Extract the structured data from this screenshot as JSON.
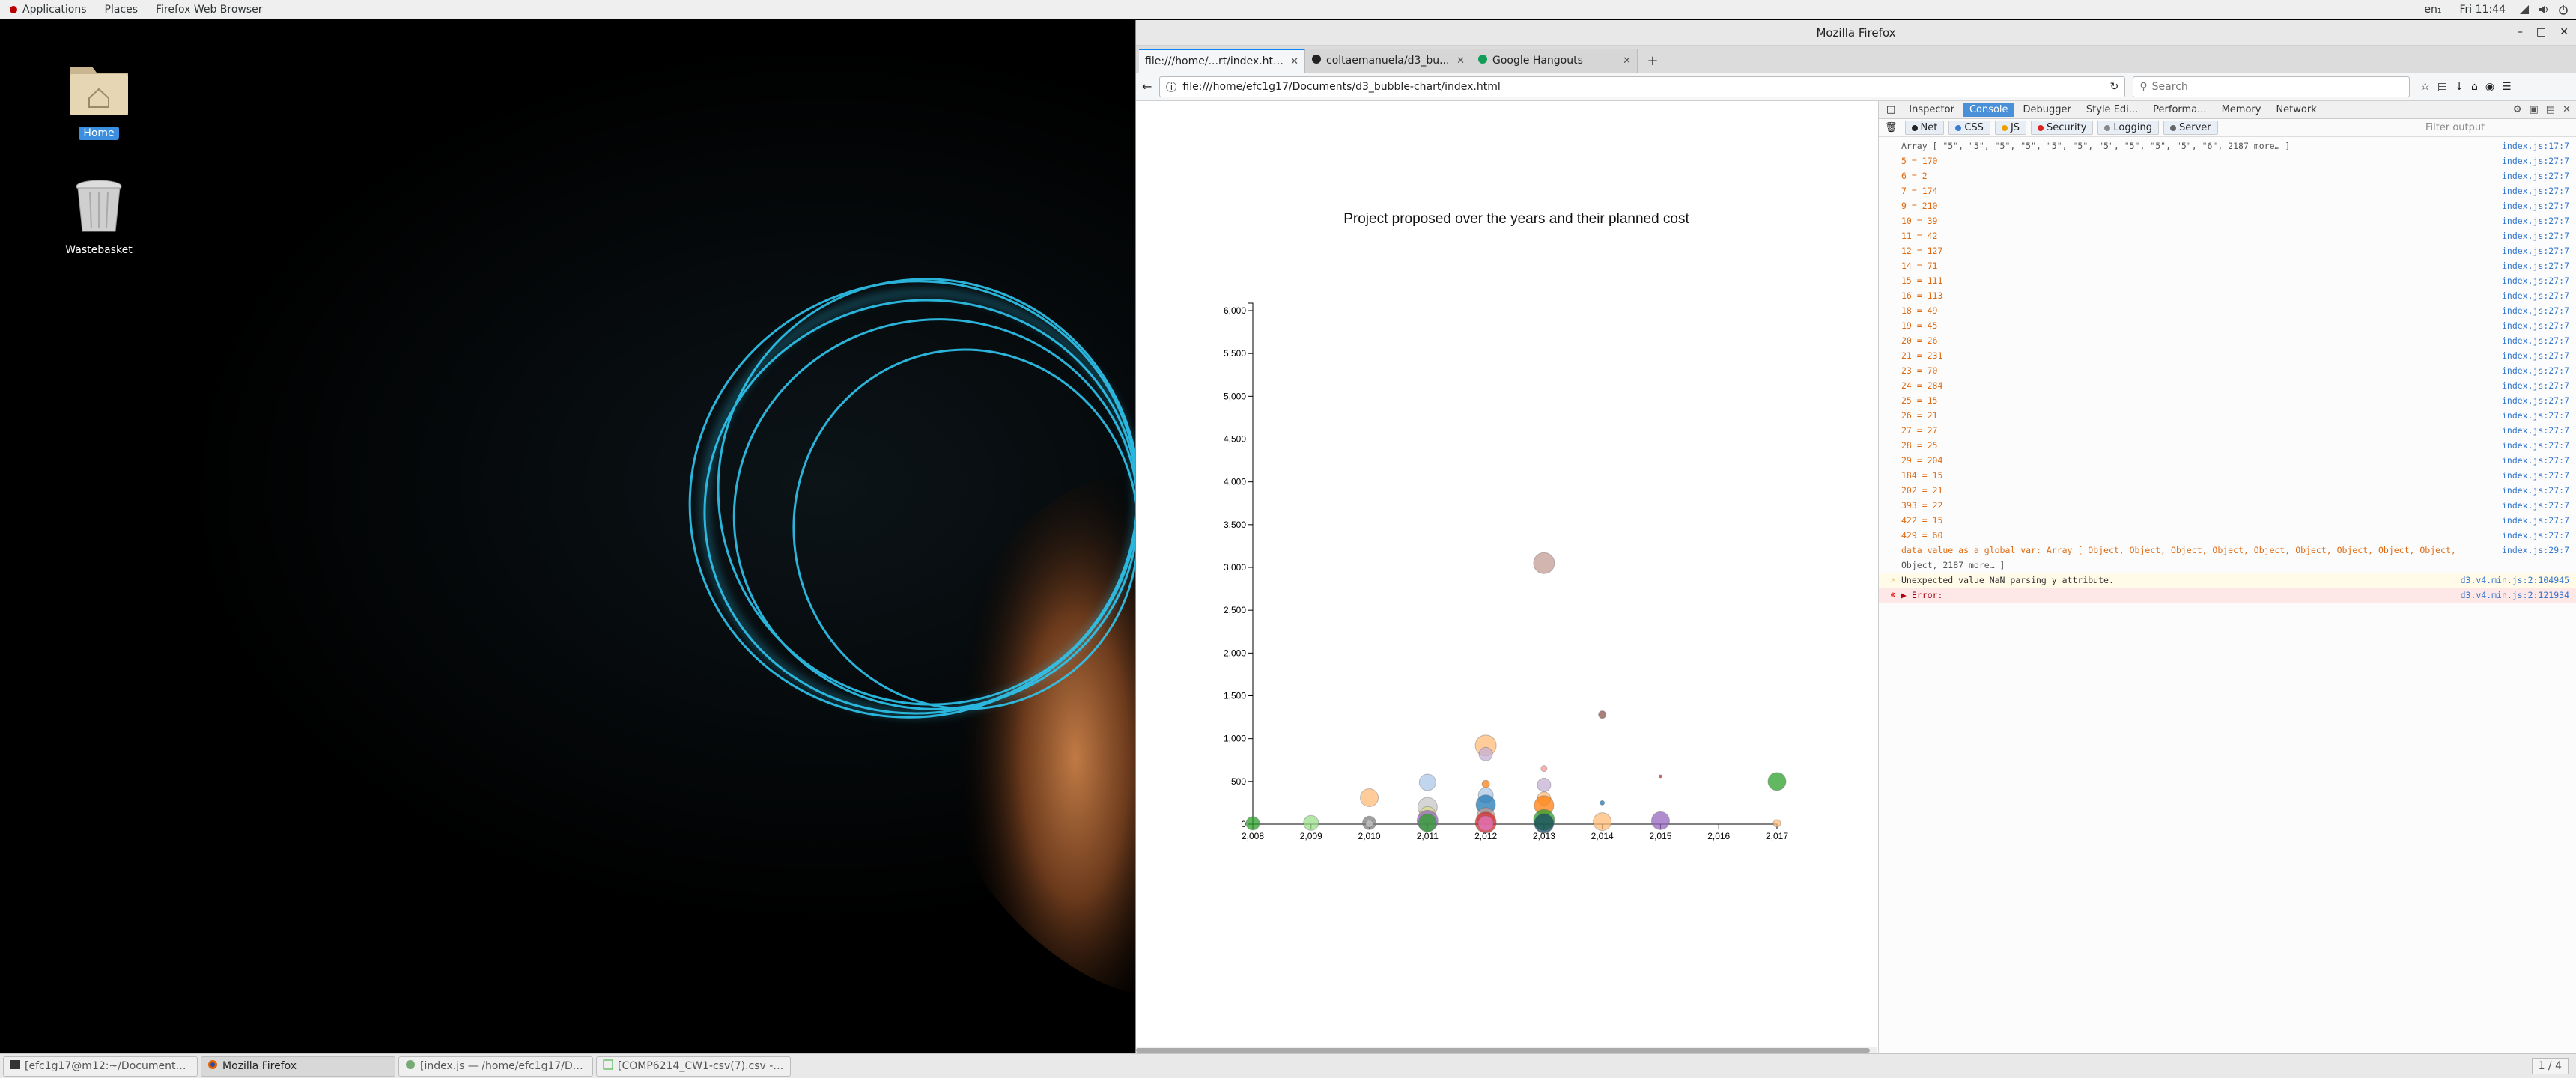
{
  "top_panel": {
    "applications": "Applications",
    "places": "Places",
    "app_menu": "Firefox Web Browser",
    "keyboard": "en₁",
    "clock": "Fri 11:44"
  },
  "desktop": {
    "icons": [
      {
        "label": "Home"
      },
      {
        "label": "Wastebasket"
      }
    ]
  },
  "firefox": {
    "window_title": "Mozilla Firefox",
    "tabs": [
      {
        "title": "file:///home/...rt/index.html"
      },
      {
        "title": "coltaemanuela/d3_bu..."
      },
      {
        "title": "Google Hangouts"
      }
    ],
    "url": "file:///home/efc1g17/Documents/d3_bubble-chart/index.html",
    "search_placeholder": "Search"
  },
  "chart_data": {
    "type": "scatter",
    "title": "Project proposed over the years and their planned cost",
    "xlabel": "",
    "ylabel": "",
    "x_ticks": [
      "2,008",
      "2,009",
      "2,010",
      "2,011",
      "2,012",
      "2,013",
      "2,014",
      "2,015",
      "2,016",
      "2,017"
    ],
    "y_ticks": [
      "0",
      "500",
      "1,000",
      "1,500",
      "2,000",
      "2,500",
      "3,000",
      "3,500",
      "4,000",
      "4,500",
      "5,000",
      "5,500",
      "6,000"
    ],
    "xlim": [
      2008,
      2017
    ],
    "ylim": [
      0,
      6000
    ],
    "points": [
      {
        "x": 2008,
        "y": 10,
        "r": 9,
        "color": "#2ca02c"
      },
      {
        "x": 2009,
        "y": 15,
        "r": 10,
        "color": "#98df8a"
      },
      {
        "x": 2010,
        "y": 310,
        "r": 12,
        "color": "#ffbb78"
      },
      {
        "x": 2010,
        "y": 15,
        "r": 9,
        "color": "#7f7f7f"
      },
      {
        "x": 2010,
        "y": 5,
        "r": 5,
        "color": "#c7c7c7"
      },
      {
        "x": 2011,
        "y": 490,
        "r": 11,
        "color": "#aec7e8"
      },
      {
        "x": 2011,
        "y": 200,
        "r": 13,
        "color": "#c7c7c7"
      },
      {
        "x": 2011,
        "y": 110,
        "r": 11,
        "color": "#dbdb8d"
      },
      {
        "x": 2011,
        "y": 40,
        "r": 14,
        "color": "#9467bd"
      },
      {
        "x": 2011,
        "y": 15,
        "r": 12,
        "color": "#2ca02c"
      },
      {
        "x": 2012,
        "y": 920,
        "r": 14,
        "color": "#ffbb78"
      },
      {
        "x": 2012,
        "y": 820,
        "r": 9,
        "color": "#c5b0d5"
      },
      {
        "x": 2012,
        "y": 470,
        "r": 5,
        "color": "#ff7f0e"
      },
      {
        "x": 2012,
        "y": 340,
        "r": 10,
        "color": "#aec7e8"
      },
      {
        "x": 2012,
        "y": 230,
        "r": 13,
        "color": "#1f77b4"
      },
      {
        "x": 2012,
        "y": 90,
        "r": 12,
        "color": "#c49c94"
      },
      {
        "x": 2012,
        "y": 20,
        "r": 14,
        "color": "#d62728"
      },
      {
        "x": 2012,
        "y": 10,
        "r": 10,
        "color": "#e377c2"
      },
      {
        "x": 2013,
        "y": 650,
        "r": 4,
        "color": "#ff9896"
      },
      {
        "x": 2013,
        "y": 460,
        "r": 9,
        "color": "#c5b0d5"
      },
      {
        "x": 2013,
        "y": 300,
        "r": 9,
        "color": "#ffbb78"
      },
      {
        "x": 2013,
        "y": 220,
        "r": 13,
        "color": "#ff7f0e"
      },
      {
        "x": 2013,
        "y": 50,
        "r": 14,
        "color": "#2ca02c"
      },
      {
        "x": 2013,
        "y": 10,
        "r": 13,
        "color": "#17485f"
      },
      {
        "x": 2013,
        "y": 3050,
        "r": 14,
        "color": "#c49c94"
      },
      {
        "x": 2014,
        "y": 1280,
        "r": 5,
        "color": "#8c564b"
      },
      {
        "x": 2014,
        "y": 250,
        "r": 3,
        "color": "#1f77b4"
      },
      {
        "x": 2014,
        "y": 30,
        "r": 12,
        "color": "#ffbb78"
      },
      {
        "x": 2015,
        "y": 560,
        "r": 2,
        "color": "#d62728"
      },
      {
        "x": 2015,
        "y": 40,
        "r": 12,
        "color": "#9467bd"
      },
      {
        "x": 2017,
        "y": 500,
        "r": 12,
        "color": "#2ca02c"
      },
      {
        "x": 2017,
        "y": 10,
        "r": 5,
        "color": "#ffbb78"
      }
    ]
  },
  "devtools": {
    "tabs": [
      "Inspector",
      "Console",
      "Debugger",
      "Style Edi...",
      "Performa...",
      "Memory",
      "Network"
    ],
    "filters": [
      "Net",
      "CSS",
      "JS",
      "Security",
      "Logging",
      "Server"
    ],
    "filter_placeholder": "Filter output",
    "console": [
      {
        "kind": "arr",
        "msg": "Array [ \"5\", \"5\", \"5\", \"5\", \"5\", \"5\", \"5\", \"5\", \"5\", \"5\", \"6\", 2187 more… ]",
        "src": "index.js:17:7"
      },
      {
        "kind": "log",
        "msg": "5 = 170",
        "src": "index.js:27:7"
      },
      {
        "kind": "log",
        "msg": "6 = 2",
        "src": "index.js:27:7"
      },
      {
        "kind": "log",
        "msg": "7 = 174",
        "src": "index.js:27:7"
      },
      {
        "kind": "log",
        "msg": "9 = 210",
        "src": "index.js:27:7"
      },
      {
        "kind": "log",
        "msg": "10 = 39",
        "src": "index.js:27:7"
      },
      {
        "kind": "log",
        "msg": "11 = 42",
        "src": "index.js:27:7"
      },
      {
        "kind": "log",
        "msg": "12 = 127",
        "src": "index.js:27:7"
      },
      {
        "kind": "log",
        "msg": "14 = 71",
        "src": "index.js:27:7"
      },
      {
        "kind": "log",
        "msg": "15 = 111",
        "src": "index.js:27:7"
      },
      {
        "kind": "log",
        "msg": "16 = 113",
        "src": "index.js:27:7"
      },
      {
        "kind": "log",
        "msg": "18 = 49",
        "src": "index.js:27:7"
      },
      {
        "kind": "log",
        "msg": "19 = 45",
        "src": "index.js:27:7"
      },
      {
        "kind": "log",
        "msg": "20 = 26",
        "src": "index.js:27:7"
      },
      {
        "kind": "log",
        "msg": "21 = 231",
        "src": "index.js:27:7"
      },
      {
        "kind": "log",
        "msg": "23 = 70",
        "src": "index.js:27:7"
      },
      {
        "kind": "log",
        "msg": "24 = 284",
        "src": "index.js:27:7"
      },
      {
        "kind": "log",
        "msg": "25 = 15",
        "src": "index.js:27:7"
      },
      {
        "kind": "log",
        "msg": "26 = 21",
        "src": "index.js:27:7"
      },
      {
        "kind": "log",
        "msg": "27 = 27",
        "src": "index.js:27:7"
      },
      {
        "kind": "log",
        "msg": "28 = 25",
        "src": "index.js:27:7"
      },
      {
        "kind": "log",
        "msg": "29 = 204",
        "src": "index.js:27:7"
      },
      {
        "kind": "log",
        "msg": "184 = 15",
        "src": "index.js:27:7"
      },
      {
        "kind": "log",
        "msg": "202 = 21",
        "src": "index.js:27:7"
      },
      {
        "kind": "log",
        "msg": "393 = 22",
        "src": "index.js:27:7"
      },
      {
        "kind": "log",
        "msg": "422 = 15",
        "src": "index.js:27:7"
      },
      {
        "kind": "log",
        "msg": "429 = 60",
        "src": "index.js:27:7"
      },
      {
        "kind": "log",
        "msg": "data value as a global var: Array [ Object, Object, Object, Object, Object, Object, Object, Object, Object,",
        "src": "index.js:29:7"
      },
      {
        "kind": "arr",
        "msg": "Object, 2187 more… ]",
        "src": ""
      },
      {
        "kind": "warn",
        "msg": "Unexpected value NaN parsing y attribute.",
        "src": "d3.v4.min.js:2:104945"
      },
      {
        "kind": "err",
        "msg": "▶ Error:",
        "src": "d3.v4.min.js:2:121934"
      }
    ]
  },
  "taskbar": {
    "items": [
      {
        "label": "[efc1g17@m12:~/Documents/d3_b..."
      },
      {
        "label": "Mozilla Firefox"
      },
      {
        "label": "[index.js — /home/efc1g17/Docume..."
      },
      {
        "label": "[COMP6214_CW1-csv(7).csv - Libr..."
      }
    ],
    "workspace": "1 / 4"
  }
}
